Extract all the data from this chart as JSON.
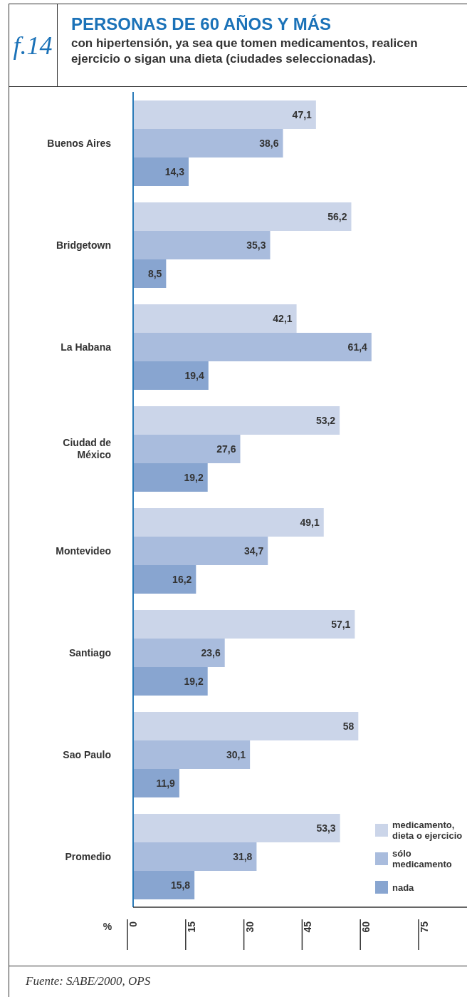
{
  "chart_data": {
    "type": "bar",
    "orientation": "horizontal",
    "title": "PERSONAS DE 60 AÑOS Y MÁS",
    "subtitle": "con hipertensión, ya sea que tomen medicamentos, realicen ejercicio o sigan una dieta (ciudades seleccionadas).",
    "annotations": [
      "f.14",
      "Fuente: SABE/2000, OPS"
    ],
    "xlabel": "%",
    "categories": [
      "Buenos Aires",
      "Bridgetown",
      "La Habana",
      "Ciudad de México",
      "Montevideo",
      "Santiago",
      "Sao Paulo",
      "Promedio"
    ],
    "series": [
      {
        "name": "medicamento, dieta o ejercicio",
        "color": "#cbd5e9",
        "values": [
          47.1,
          56.2,
          42.1,
          53.2,
          49.1,
          57.1,
          58,
          53.3
        ],
        "value_labels": [
          "47,1",
          "56,2",
          "42,1",
          "53,2",
          "49,1",
          "57,1",
          "58",
          "53,3"
        ]
      },
      {
        "name": "sólo medicamento",
        "color": "#a9bcdd",
        "values": [
          38.6,
          35.3,
          61.4,
          27.6,
          34.7,
          23.6,
          30.1,
          31.8
        ],
        "value_labels": [
          "38,6",
          "35,3",
          "61,4",
          "27,6",
          "34,7",
          "23,6",
          "30,1",
          "31,8"
        ]
      },
      {
        "name": "nada",
        "color": "#88a5d0",
        "values": [
          14.3,
          8.5,
          19.4,
          19.2,
          16.2,
          19.2,
          11.9,
          15.8
        ],
        "value_labels": [
          "14,3",
          "8,5",
          "19,4",
          "19,2",
          "16,2",
          "19,2",
          "11,9",
          "15,8"
        ]
      }
    ],
    "xlim": [
      0,
      86
    ],
    "xticks": [
      0,
      15,
      30,
      45,
      60,
      75
    ],
    "legend": "bottom right"
  }
}
